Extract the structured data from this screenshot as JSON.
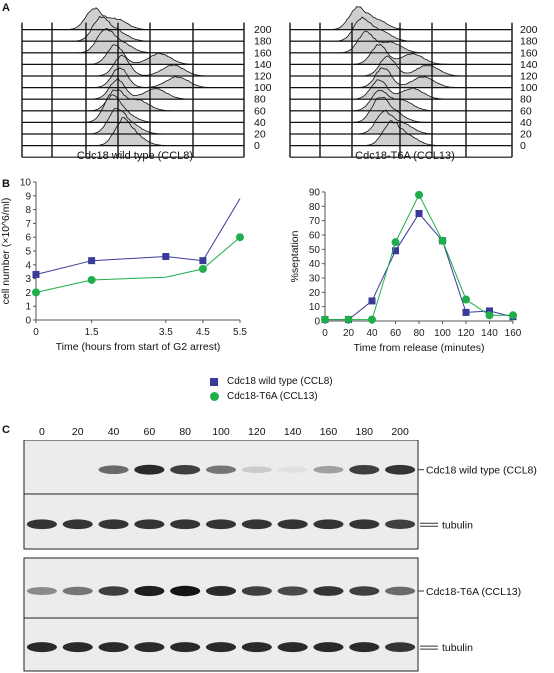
{
  "panels": {
    "a": "A",
    "b": "B",
    "c": "C"
  },
  "panel_a": {
    "left_caption": "Cdc18 wild type (CCL8)",
    "right_caption": "Cdc18-T6A (CCL13)",
    "time_labels": [
      "200",
      "180",
      "160",
      "140",
      "120",
      "100",
      "80",
      "60",
      "40",
      "20",
      "0"
    ]
  },
  "chart_data": [
    {
      "type": "line",
      "xlabel": "Time (hours from start of G2 arrest)",
      "ylabel": "cell number (×10^6/ml)",
      "x": [
        0,
        1.5,
        3.5,
        4.5,
        5.5
      ],
      "xticks": [
        "0",
        "1.5",
        "3.5",
        "4.5",
        "5.5"
      ],
      "ylim": [
        0,
        10
      ],
      "yticks": [
        "0",
        "1",
        "2",
        "3",
        "4",
        "5",
        "6",
        "7",
        "8",
        "9",
        "10"
      ],
      "series": [
        {
          "name": "Cdc18 wild type (CCL8)",
          "color": "#3a3a9a",
          "marker": "square",
          "values": [
            3.3,
            4.3,
            4.6,
            4.3,
            8.8
          ],
          "marker_mask": [
            1,
            1,
            1,
            1,
            0
          ]
        },
        {
          "name": "Cdc18-T6A (CCL13)",
          "color": "#1fae4a",
          "marker": "circle",
          "values": [
            2.0,
            2.9,
            3.1,
            3.7,
            6.0
          ],
          "marker_mask": [
            1,
            1,
            0,
            1,
            1
          ]
        }
      ]
    },
    {
      "type": "line",
      "xlabel": "Time from release (minutes)",
      "ylabel": "%septation",
      "x": [
        0,
        20,
        40,
        60,
        80,
        100,
        120,
        140,
        160
      ],
      "xticks": [
        "0",
        "20",
        "40",
        "60",
        "80",
        "100",
        "120",
        "140",
        "160"
      ],
      "ylim": [
        0,
        90
      ],
      "yticks": [
        "0",
        "10",
        "20",
        "30",
        "40",
        "50",
        "60",
        "70",
        "80",
        "90"
      ],
      "series": [
        {
          "name": "Cdc18 wild type (CCL8)",
          "color": "#3a3a9a",
          "marker": "square",
          "values": [
            1,
            1,
            14,
            49,
            75,
            56,
            6,
            7,
            3
          ]
        },
        {
          "name": "Cdc18-T6A (CCL13)",
          "color": "#1fae4a",
          "marker": "circle",
          "values": [
            1,
            1,
            1,
            55,
            88,
            56,
            15,
            4,
            4
          ]
        }
      ]
    }
  ],
  "legend": {
    "wt": "Cdc18 wild type (CCL8)",
    "t6a": "Cdc18-T6A (CCL13)"
  },
  "panel_c": {
    "lanes": [
      "0",
      "20",
      "40",
      "60",
      "80",
      "100",
      "120",
      "140",
      "160",
      "180",
      "200"
    ],
    "blots": [
      {
        "label": "Cdc18 wild type (CCL8)",
        "intensity": [
          0,
          0,
          0.6,
          0.9,
          0.8,
          0.55,
          0.15,
          0.05,
          0.35,
          0.8,
          0.85
        ]
      },
      {
        "label": "tubulin",
        "intensity": [
          0.85,
          0.85,
          0.85,
          0.85,
          0.85,
          0.85,
          0.85,
          0.85,
          0.85,
          0.85,
          0.8
        ]
      },
      {
        "label": "Cdc18-T6A (CCL13)",
        "intensity": [
          0.45,
          0.55,
          0.8,
          0.95,
          1.0,
          0.9,
          0.8,
          0.75,
          0.85,
          0.8,
          0.6
        ]
      },
      {
        "label": "tubulin",
        "intensity": [
          0.9,
          0.9,
          0.9,
          0.9,
          0.9,
          0.9,
          0.9,
          0.9,
          0.9,
          0.9,
          0.85
        ]
      }
    ]
  }
}
